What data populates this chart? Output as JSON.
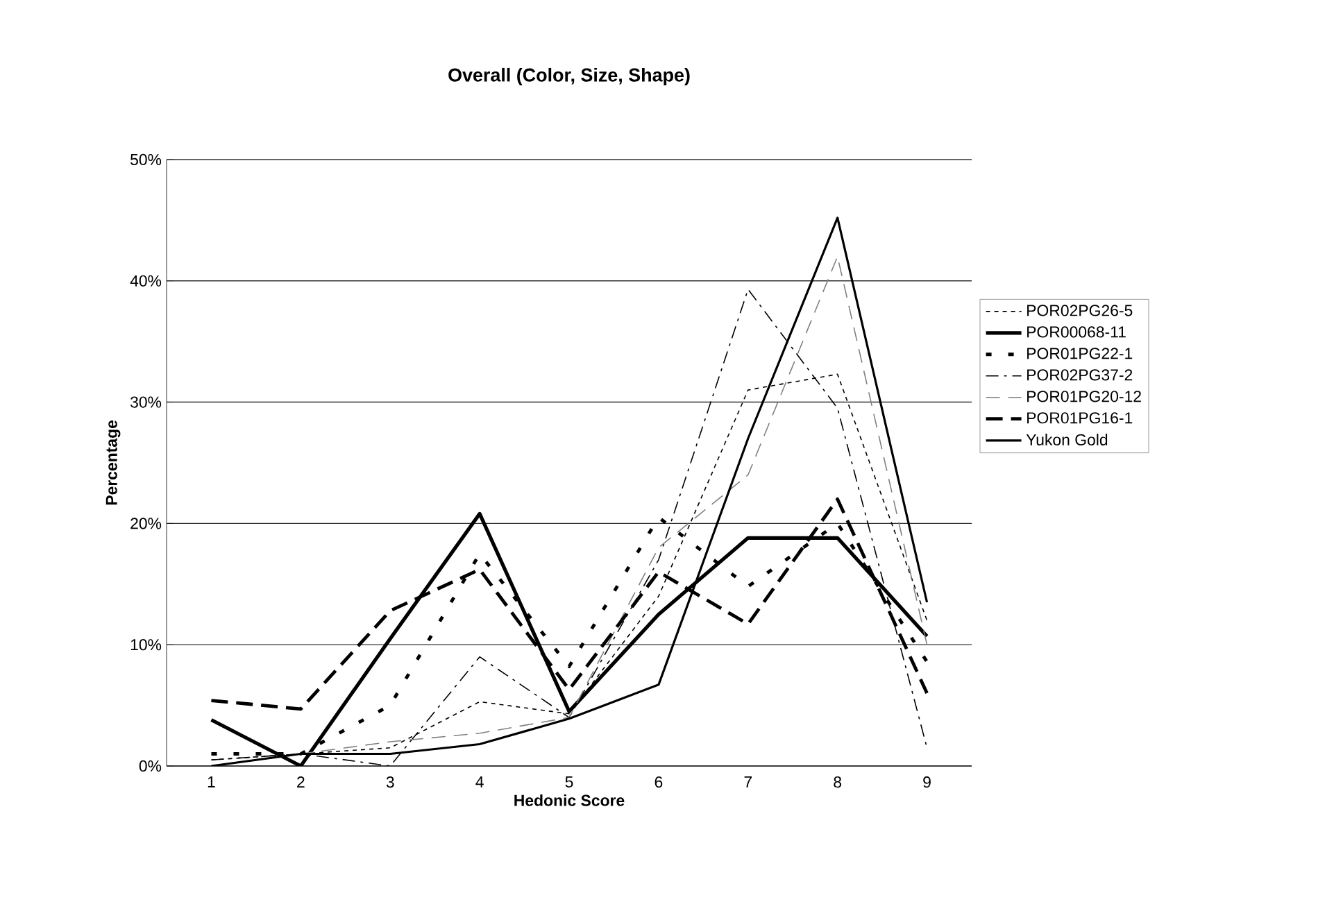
{
  "chart_data": {
    "type": "line",
    "title": "Overall (Color, Size, Shape)",
    "xlabel": "Hedonic Score",
    "ylabel": "Percentage",
    "categories": [
      "1",
      "2",
      "3",
      "4",
      "5",
      "6",
      "7",
      "8",
      "9"
    ],
    "ylim": [
      0,
      50
    ],
    "yticks": [
      {
        "value": 0,
        "label": "0%"
      },
      {
        "value": 10,
        "label": "10%"
      },
      {
        "value": 20,
        "label": "20%"
      },
      {
        "value": 30,
        "label": "30%"
      },
      {
        "value": 40,
        "label": "40%"
      },
      {
        "value": 50,
        "label": "50%"
      }
    ],
    "grid": "y",
    "legend": "right",
    "marker": "none",
    "series": [
      {
        "name": "POR02PG26-5",
        "color": "#000000",
        "line_style": "dotted",
        "values": [
          0.5,
          1,
          1.5,
          5.3,
          4.3,
          14,
          31,
          32.3,
          12
        ]
      },
      {
        "name": "POR00068-11",
        "color": "#000000",
        "line_style": "solid",
        "values": [
          3.8,
          0,
          10.5,
          20.8,
          4.5,
          12.5,
          18.8,
          18.8,
          10.7
        ]
      },
      {
        "name": "POR01PG22-1",
        "color": "#000000",
        "line_style": "dashed",
        "values": [
          1,
          1,
          5,
          17.5,
          8.2,
          20.5,
          14.8,
          20,
          8.6
        ]
      },
      {
        "name": "POR02PG37-2",
        "color": "#000000",
        "line_style": "dashed",
        "values": [
          0.5,
          1,
          0,
          9,
          4,
          17,
          39.3,
          29.5,
          1.5
        ]
      },
      {
        "name": "POR01PG20-12",
        "color": "#808080",
        "line_style": "dashed",
        "values": [
          0,
          1,
          2,
          2.7,
          4,
          18,
          24,
          42,
          10
        ]
      },
      {
        "name": "POR01PG16-1",
        "color": "#000000",
        "line_style": "dashed",
        "values": [
          5.4,
          4.7,
          12.8,
          16.2,
          6.3,
          16,
          11.7,
          22,
          6
        ]
      },
      {
        "name": "Yukon Gold",
        "color": "#000000",
        "line_style": "solid",
        "values": [
          0,
          1,
          1,
          1.8,
          3.9,
          6.7,
          27,
          45.2,
          13.5
        ]
      }
    ]
  }
}
